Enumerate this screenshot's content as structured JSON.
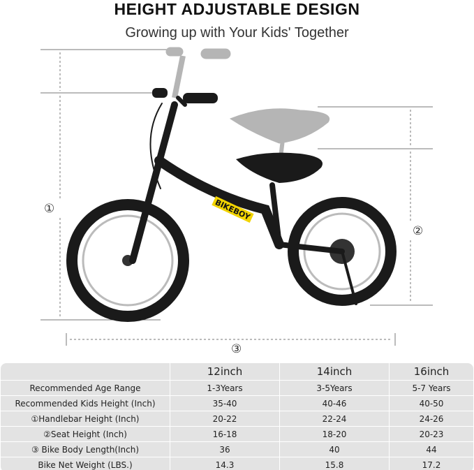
{
  "title": "HEIGHT ADJUSTABLE DESIGN",
  "subtitle": "Growing up with Your Kids' Together",
  "bike": {
    "brand_logo": "BIKEBOY",
    "frame_color": "#1a1a1a",
    "ghost_color": "#aaaaaa"
  },
  "markers": {
    "handlebar": "①",
    "seat": "②",
    "length": "③"
  },
  "table": {
    "headers": [
      "",
      "12inch",
      "14inch",
      "16inch"
    ],
    "rows": [
      [
        "Recommended Age Range",
        "1-3Years",
        "3-5Years",
        "5-7 Years"
      ],
      [
        "Recommended Kids Height (Inch)",
        "35-40",
        "40-46",
        "40-50"
      ],
      [
        "①Handlebar Height (Inch)",
        "20-22",
        "22-24",
        "24-26"
      ],
      [
        "②Seat Height (Inch)",
        "16-18",
        "18-20",
        "20-23"
      ],
      [
        "③ Bike Body Length(Inch)",
        "36",
        "40",
        "44"
      ],
      [
        "Bike Net Weight (LBS.)",
        "14.3",
        "15.8",
        "17.2"
      ]
    ]
  }
}
